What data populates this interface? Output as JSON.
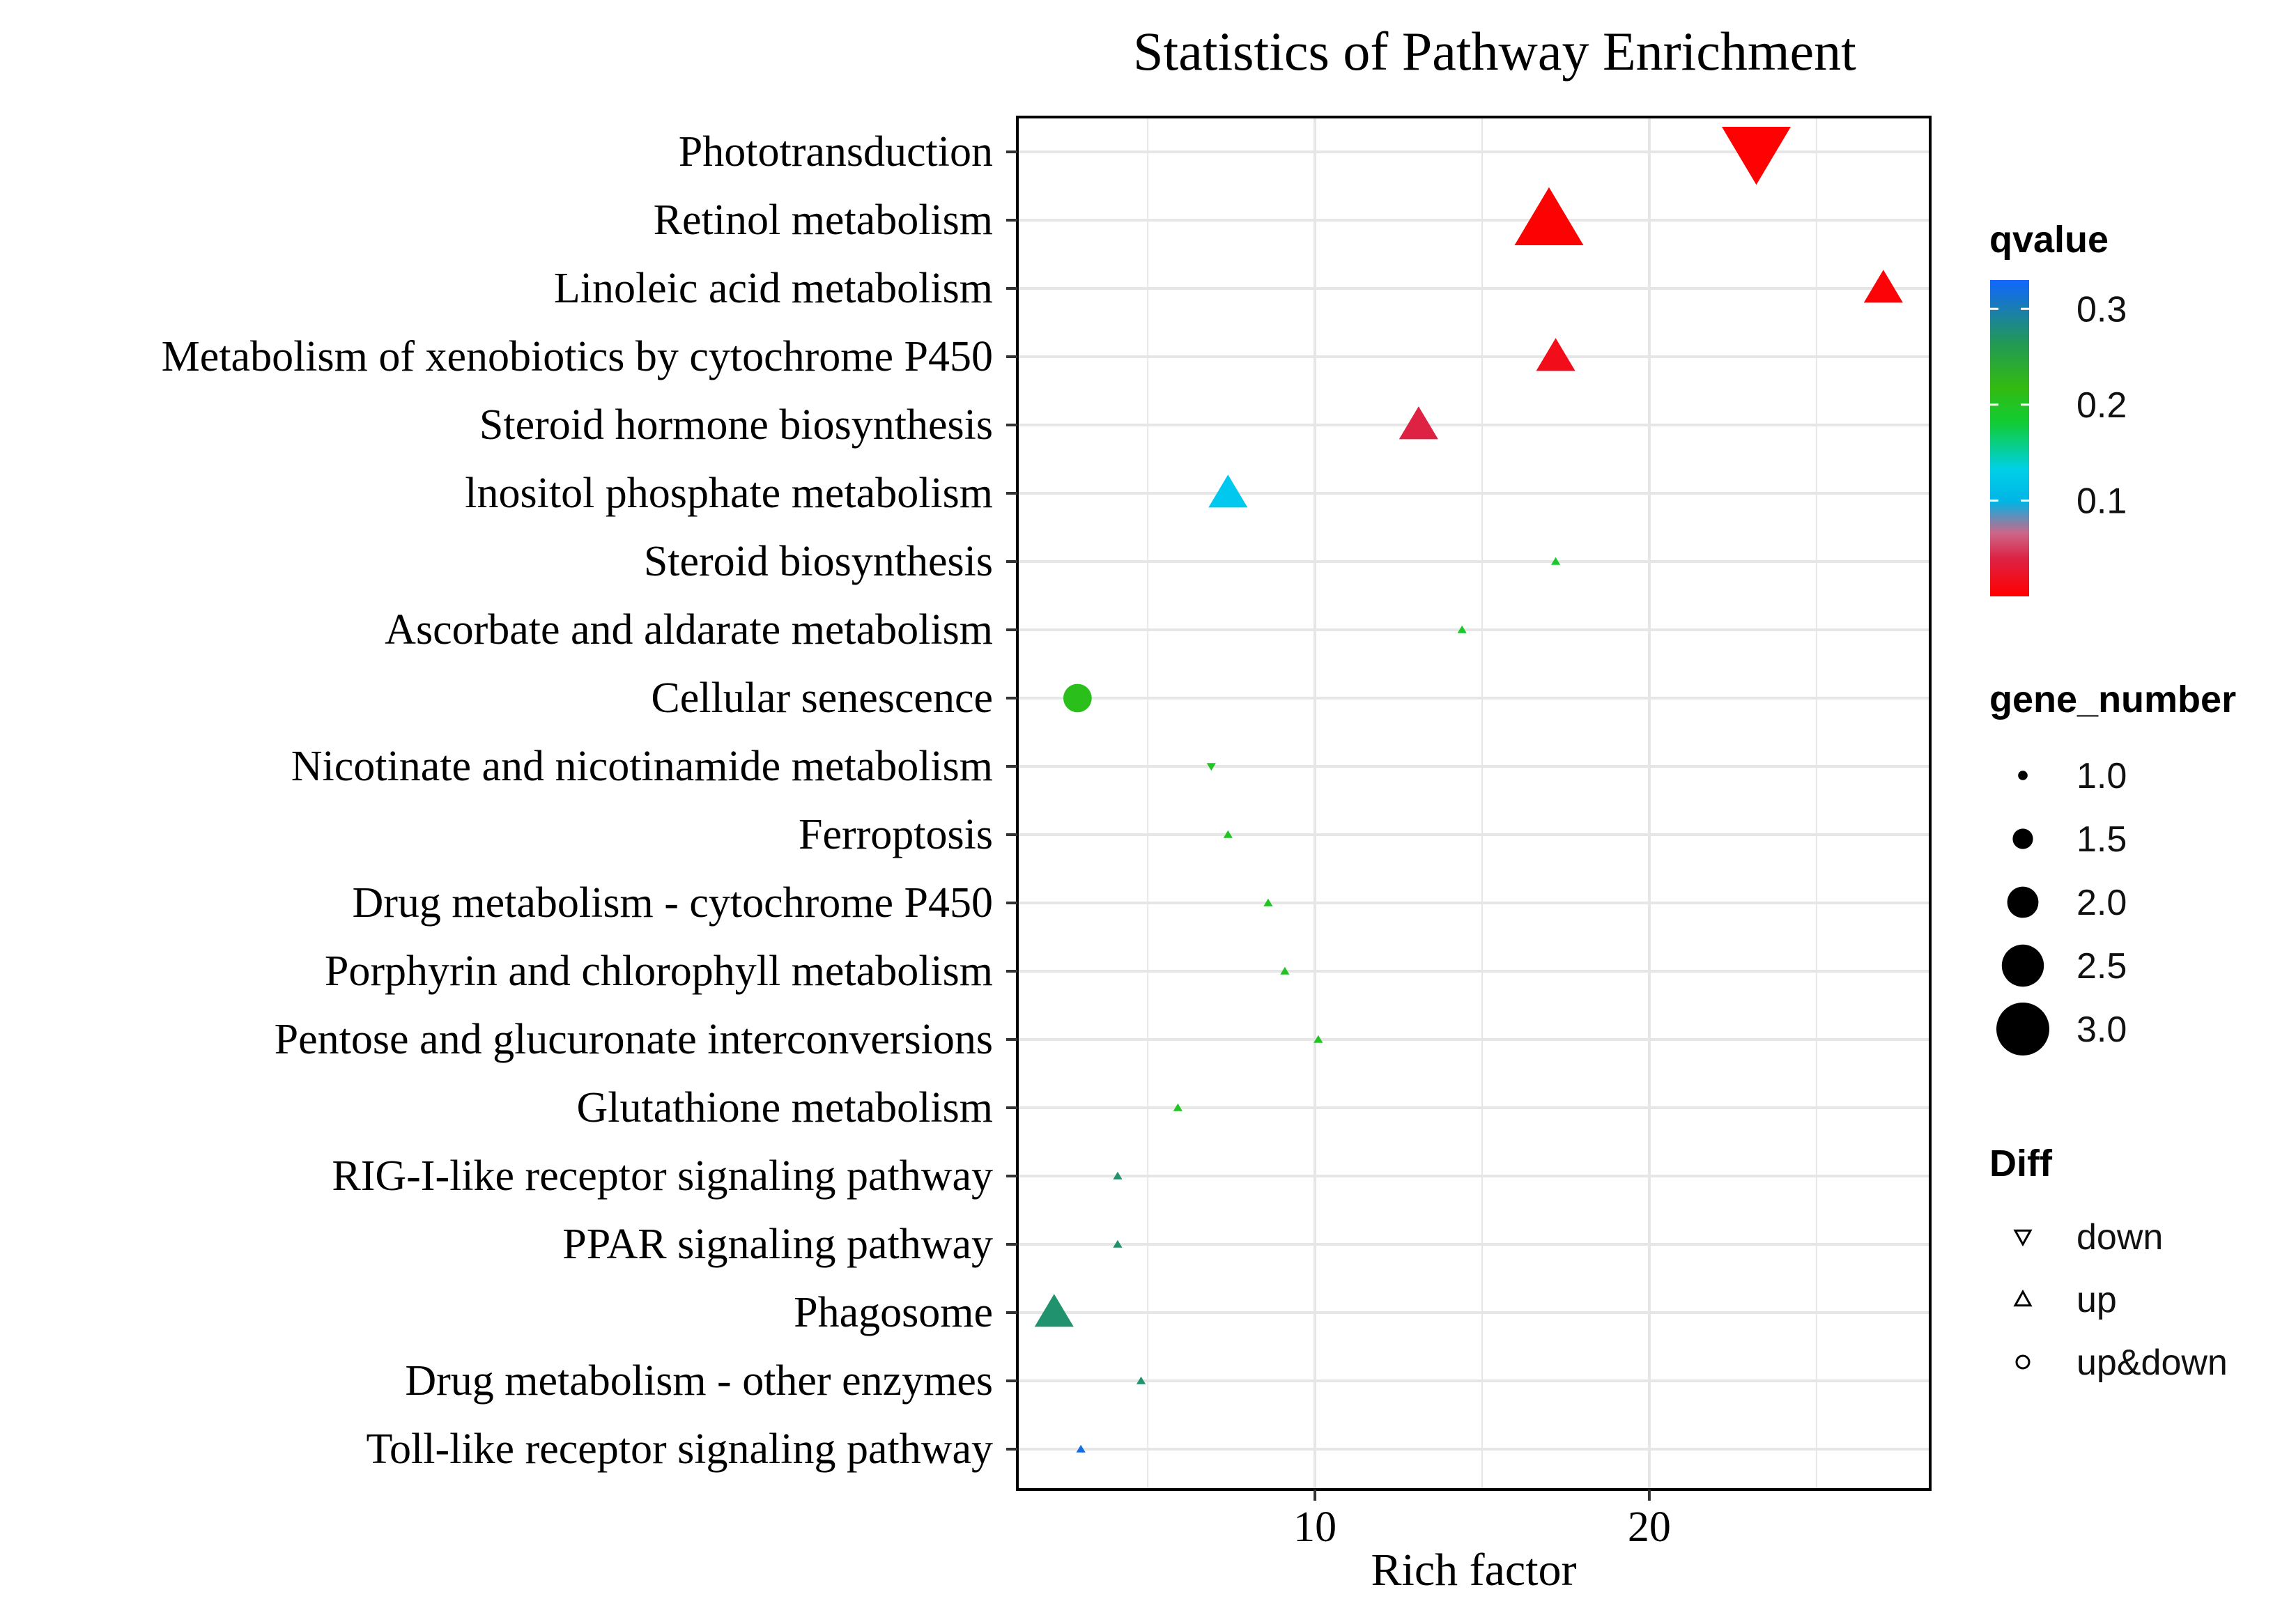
{
  "chart_data": {
    "type": "scatter",
    "title": "Statistics of Pathway Enrichment",
    "xlabel": "Rich factor",
    "ylabel": "",
    "xlim": [
      1.1,
      28.4
    ],
    "xticks": [
      10,
      20
    ],
    "xtick_labels": [
      "10",
      "20"
    ],
    "grid": true,
    "categories": [
      "Phototransduction",
      "Retinol metabolism",
      "Linoleic acid metabolism",
      "Metabolism of xenobiotics by cytochrome P450",
      "Steroid hormone biosynthesis",
      "lnositol phosphate metabolism",
      "Steroid biosynthesis",
      "Ascorbate and aldarate metabolism",
      "Cellular senescence",
      "Nicotinate and nicotinamide metabolism",
      "Ferroptosis",
      "Drug metabolism - cytochrome P450",
      "Porphyrin and chlorophyll metabolism",
      "Pentose and glucuronate interconversions",
      "Glutathione metabolism",
      "RIG-I-like receptor signaling pathway",
      "PPAR signaling pathway",
      "Phagosome",
      "Drug metabolism - other enzymes",
      "Toll-like receptor signaling pathway"
    ],
    "points": [
      {
        "pathway": "Phototransduction",
        "rich_factor": 23.2,
        "qvalue": 0.001,
        "gene_number": 3,
        "diff": "down"
      },
      {
        "pathway": "Retinol metabolism",
        "rich_factor": 17.0,
        "qvalue": 0.002,
        "gene_number": 3,
        "diff": "up"
      },
      {
        "pathway": "Linoleic acid metabolism",
        "rich_factor": 27.0,
        "qvalue": 0.004,
        "gene_number": 2,
        "diff": "up"
      },
      {
        "pathway": "Metabolism of xenobiotics by cytochrome P450",
        "rich_factor": 17.2,
        "qvalue": 0.015,
        "gene_number": 2,
        "diff": "up"
      },
      {
        "pathway": "Steroid hormone biosynthesis",
        "rich_factor": 13.1,
        "qvalue": 0.04,
        "gene_number": 2,
        "diff": "up"
      },
      {
        "pathway": "lnositol phosphate metabolism",
        "rich_factor": 7.4,
        "qvalue": 0.1,
        "gene_number": 2,
        "diff": "up"
      },
      {
        "pathway": "Steroid biosynthesis",
        "rich_factor": 17.2,
        "qvalue": 0.19,
        "gene_number": 1,
        "diff": "up"
      },
      {
        "pathway": "Ascorbate and aldarate metabolism",
        "rich_factor": 14.4,
        "qvalue": 0.19,
        "gene_number": 1,
        "diff": "up"
      },
      {
        "pathway": "Cellular senescence",
        "rich_factor": 2.9,
        "qvalue": 0.21,
        "gene_number": 2,
        "diff": "up&down"
      },
      {
        "pathway": "Nicotinate and nicotinamide metabolism",
        "rich_factor": 6.9,
        "qvalue": 0.2,
        "gene_number": 1,
        "diff": "down"
      },
      {
        "pathway": "Ferroptosis",
        "rich_factor": 7.4,
        "qvalue": 0.2,
        "gene_number": 1,
        "diff": "up"
      },
      {
        "pathway": "Drug metabolism - cytochrome P450",
        "rich_factor": 8.6,
        "qvalue": 0.2,
        "gene_number": 1,
        "diff": "up"
      },
      {
        "pathway": "Porphyrin and chlorophyll metabolism",
        "rich_factor": 9.1,
        "qvalue": 0.2,
        "gene_number": 1,
        "diff": "up"
      },
      {
        "pathway": "Pentose and glucuronate interconversions",
        "rich_factor": 10.1,
        "qvalue": 0.2,
        "gene_number": 1,
        "diff": "up"
      },
      {
        "pathway": "Glutathione metabolism",
        "rich_factor": 5.9,
        "qvalue": 0.2,
        "gene_number": 1,
        "diff": "up"
      },
      {
        "pathway": "RIG-I-like receptor signaling pathway",
        "rich_factor": 4.1,
        "qvalue": 0.27,
        "gene_number": 1,
        "diff": "up"
      },
      {
        "pathway": "PPAR signaling pathway",
        "rich_factor": 4.1,
        "qvalue": 0.27,
        "gene_number": 1,
        "diff": "up"
      },
      {
        "pathway": "Phagosome",
        "rich_factor": 2.2,
        "qvalue": 0.27,
        "gene_number": 2,
        "diff": "up"
      },
      {
        "pathway": "Drug metabolism - other enzymes",
        "rich_factor": 4.8,
        "qvalue": 0.27,
        "gene_number": 1,
        "diff": "up"
      },
      {
        "pathway": "Toll-like receptor signaling pathway",
        "rich_factor": 3.0,
        "qvalue": 0.32,
        "gene_number": 1,
        "diff": "up"
      }
    ],
    "legends": {
      "qvalue": {
        "title": "qvalue",
        "ticks": [
          "0.3",
          "0.2",
          "0.1"
        ],
        "tick_values": [
          0.3,
          0.2,
          0.1
        ],
        "range": [
          0.0,
          0.33
        ]
      },
      "gene_number": {
        "title": "gene_number",
        "labels": [
          "1.0",
          "1.5",
          "2.0",
          "2.5",
          "3.0"
        ],
        "values": [
          1.0,
          1.5,
          2.0,
          2.5,
          3.0
        ]
      },
      "diff": {
        "title": "Diff",
        "labels": [
          "down",
          "up",
          "up&down"
        ]
      }
    },
    "colors": {
      "q_low": "#ff0000",
      "q_mid_low": "#cc6688",
      "q_010": "#00c8ef",
      "q_020": "#22cc11",
      "q_025": "#229955",
      "q_high": "#1166ff",
      "grid": "#e6e6e6",
      "panel_border": "#000000"
    }
  }
}
